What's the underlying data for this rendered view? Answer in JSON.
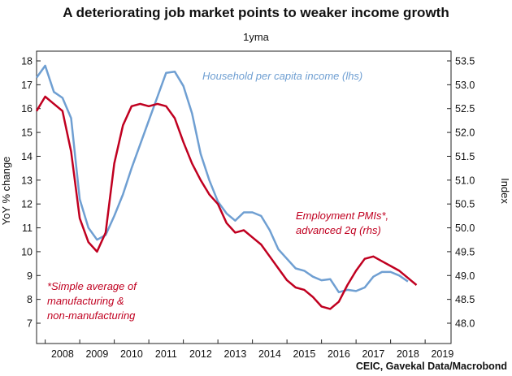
{
  "chart_data": {
    "type": "line",
    "title": "A deteriorating job market points to weaker income growth",
    "subtitle": "1yma",
    "ylabel_left": "YoY % change",
    "ylabel_right": "Index",
    "ylim_left": [
      7,
      18
    ],
    "ylim_right": [
      48.0,
      53.5
    ],
    "xlim": [
      2007.75,
      2019.75
    ],
    "left_ticks": [
      "7",
      "8",
      "9",
      "10",
      "11",
      "12",
      "13",
      "14",
      "15",
      "16",
      "17",
      "18"
    ],
    "right_ticks": [
      "48.0",
      "48.5",
      "49.0",
      "49.5",
      "50.0",
      "50.5",
      "51.0",
      "51.5",
      "52.0",
      "52.5",
      "53.0",
      "53.5"
    ],
    "x_tick_labels": [
      "2008",
      "2009",
      "2010",
      "2011",
      "2012",
      "2013",
      "2014",
      "2015",
      "2016",
      "2017",
      "2018",
      "2019"
    ],
    "series": [
      {
        "name": "Household per capita income (lhs)",
        "axis": "left",
        "color": "#6f9fd2",
        "points": [
          [
            2007.75,
            17.3
          ],
          [
            2008.0,
            17.8
          ],
          [
            2008.25,
            16.7
          ],
          [
            2008.5,
            16.45
          ],
          [
            2008.75,
            15.6
          ],
          [
            2009.0,
            12.2
          ],
          [
            2009.25,
            11.0
          ],
          [
            2009.5,
            10.5
          ],
          [
            2009.75,
            10.7
          ],
          [
            2010.0,
            11.5
          ],
          [
            2010.25,
            12.4
          ],
          [
            2010.5,
            13.5
          ],
          [
            2010.75,
            14.5
          ],
          [
            2011.0,
            15.5
          ],
          [
            2011.25,
            16.5
          ],
          [
            2011.5,
            17.5
          ],
          [
            2011.75,
            17.55
          ],
          [
            2012.0,
            16.95
          ],
          [
            2012.25,
            15.8
          ],
          [
            2012.5,
            14.1
          ],
          [
            2012.75,
            13.0
          ],
          [
            2013.0,
            12.1
          ],
          [
            2013.25,
            11.6
          ],
          [
            2013.5,
            11.3
          ],
          [
            2013.75,
            11.65
          ],
          [
            2014.0,
            11.65
          ],
          [
            2014.25,
            11.5
          ],
          [
            2014.5,
            10.9
          ],
          [
            2014.75,
            10.1
          ],
          [
            2015.0,
            9.7
          ],
          [
            2015.25,
            9.3
          ],
          [
            2015.5,
            9.2
          ],
          [
            2015.75,
            8.95
          ],
          [
            2016.0,
            8.8
          ],
          [
            2016.25,
            8.85
          ],
          [
            2016.5,
            8.3
          ],
          [
            2016.75,
            8.4
          ],
          [
            2017.0,
            8.35
          ],
          [
            2017.25,
            8.5
          ],
          [
            2017.5,
            8.95
          ],
          [
            2017.75,
            9.15
          ],
          [
            2018.0,
            9.15
          ],
          [
            2018.25,
            9.0
          ],
          [
            2018.5,
            8.75
          ]
        ]
      },
      {
        "name": "Employment PMIs*, advanced 2q (rhs)",
        "axis": "right",
        "color": "#c00020",
        "points": [
          [
            2007.75,
            52.45
          ],
          [
            2008.0,
            52.75
          ],
          [
            2008.25,
            52.6
          ],
          [
            2008.5,
            52.45
          ],
          [
            2008.75,
            51.6
          ],
          [
            2009.0,
            50.2
          ],
          [
            2009.25,
            49.7
          ],
          [
            2009.5,
            49.5
          ],
          [
            2009.75,
            49.9
          ],
          [
            2010.0,
            51.35
          ],
          [
            2010.25,
            52.15
          ],
          [
            2010.5,
            52.55
          ],
          [
            2010.75,
            52.6
          ],
          [
            2011.0,
            52.55
          ],
          [
            2011.25,
            52.6
          ],
          [
            2011.5,
            52.55
          ],
          [
            2011.75,
            52.3
          ],
          [
            2012.0,
            51.8
          ],
          [
            2012.25,
            51.35
          ],
          [
            2012.5,
            51.0
          ],
          [
            2012.75,
            50.7
          ],
          [
            2013.0,
            50.5
          ],
          [
            2013.25,
            50.1
          ],
          [
            2013.5,
            49.9
          ],
          [
            2013.75,
            49.95
          ],
          [
            2014.0,
            49.8
          ],
          [
            2014.25,
            49.65
          ],
          [
            2014.5,
            49.4
          ],
          [
            2014.75,
            49.15
          ],
          [
            2015.0,
            48.9
          ],
          [
            2015.25,
            48.75
          ],
          [
            2015.5,
            48.7
          ],
          [
            2015.75,
            48.55
          ],
          [
            2016.0,
            48.35
          ],
          [
            2016.25,
            48.3
          ],
          [
            2016.5,
            48.45
          ],
          [
            2016.75,
            48.8
          ],
          [
            2017.0,
            49.1
          ],
          [
            2017.25,
            49.35
          ],
          [
            2017.5,
            49.4
          ],
          [
            2017.75,
            49.3
          ],
          [
            2018.0,
            49.2
          ],
          [
            2018.25,
            49.1
          ],
          [
            2018.5,
            48.95
          ],
          [
            2018.75,
            48.8
          ]
        ]
      }
    ],
    "annotations": {
      "income_label": "Household per capita income (lhs)",
      "pmi_label_line1": "Employment PMIs*,",
      "pmi_label_line2": "advanced 2q (rhs)",
      "footnote_line1": "*Simple average of",
      "footnote_line2": "manufacturing &",
      "footnote_line3": "non-manufacturing"
    },
    "source": "CEIC, Gavekal Data/Macrobond",
    "grid": false,
    "colors": {
      "income": "#6f9fd2",
      "pmi": "#c00020"
    }
  }
}
